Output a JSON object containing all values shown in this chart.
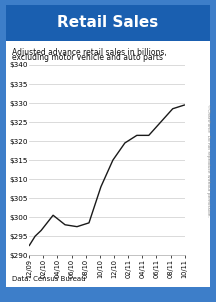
{
  "title": "Retail Sales",
  "subtitle_line1": "Adjusted advance retail sales in billions,",
  "subtitle_line2": "excluding motor vehicle and auto parts",
  "data_source": "Data: Census Bureau",
  "watermark": "©ChartForce  Do not reproduce without permission.",
  "x_labels": [
    "12/09",
    "02/10",
    "04/10",
    "06/10",
    "08/10",
    "10/10",
    "12/10",
    "02/11",
    "04/11",
    "06/11",
    "08/11",
    "10/11"
  ],
  "y_values": [
    292.5,
    295.0,
    296.5,
    300.5,
    298.0,
    297.5,
    298.5,
    308.0,
    315.0,
    319.5,
    321.5,
    321.5,
    325.0,
    328.5,
    329.5
  ],
  "x_positions": [
    0,
    0.5,
    1,
    2,
    3,
    4,
    5,
    6,
    7,
    8,
    9,
    10,
    11,
    12,
    13
  ],
  "ylim": [
    290,
    342
  ],
  "yticks": [
    290,
    295,
    300,
    305,
    310,
    315,
    320,
    325,
    330,
    335,
    340
  ],
  "title_bg_color": "#1a5fb0",
  "title_text_color": "#ffffff",
  "chart_bg_color": "#ffffff",
  "outer_bg_color": "#3d7ec9",
  "line_color": "#1a1a1a",
  "grid_color": "#cccccc",
  "subtitle_color": "#111111",
  "source_color": "#111111",
  "watermark_color": "#888888"
}
